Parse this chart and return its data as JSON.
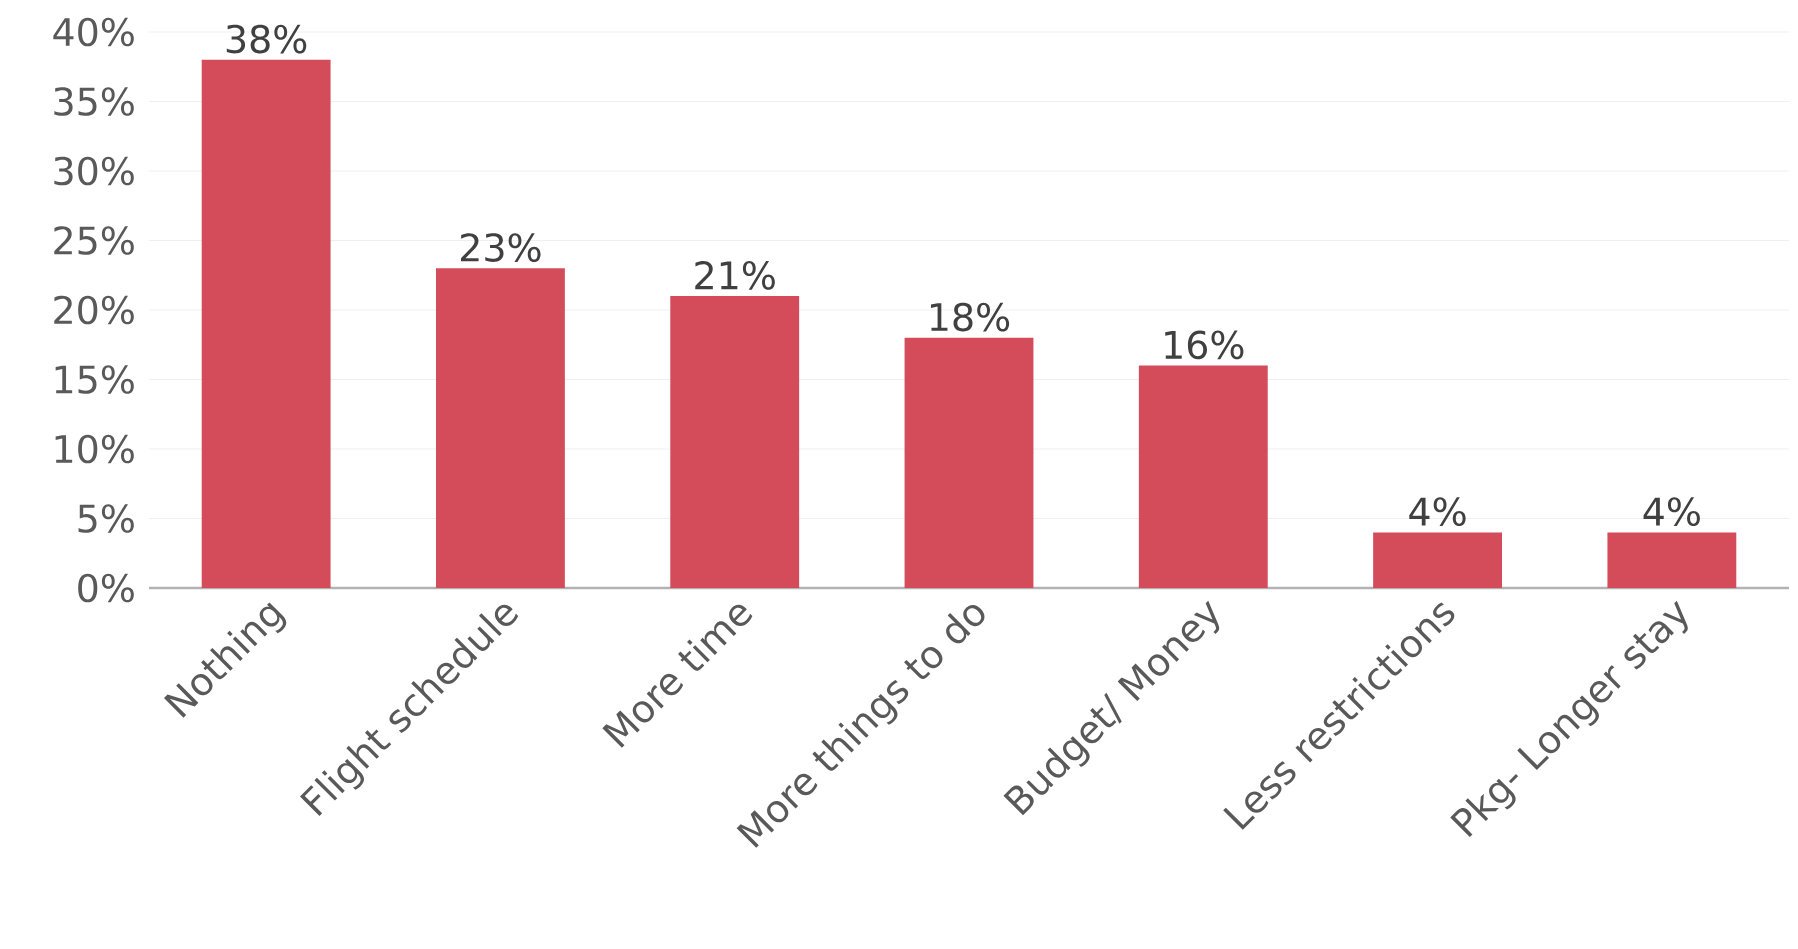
{
  "chart_data": {
    "type": "bar",
    "categories": [
      "Nothing",
      "Flight schedule",
      "More time",
      "More things to do",
      "Budget/ Money",
      "Less restrictions",
      "Pkg- Longer stay"
    ],
    "values": [
      38,
      23,
      21,
      18,
      16,
      4,
      4
    ],
    "value_labels": [
      "38%",
      "23%",
      "21%",
      "18%",
      "16%",
      "4%",
      "4%"
    ],
    "color": "#d44c5a",
    "ylim": [
      0,
      40
    ],
    "yticks": [
      {
        "value": 0,
        "label": "0%"
      },
      {
        "value": 5,
        "label": "5%"
      },
      {
        "value": 10,
        "label": "10%"
      },
      {
        "value": 15,
        "label": "15%"
      },
      {
        "value": 20,
        "label": "20%"
      },
      {
        "value": 25,
        "label": "25%"
      },
      {
        "value": 30,
        "label": "30%"
      },
      {
        "value": 35,
        "label": "35%"
      },
      {
        "value": 40,
        "label": "40%"
      }
    ],
    "grid": "y"
  }
}
